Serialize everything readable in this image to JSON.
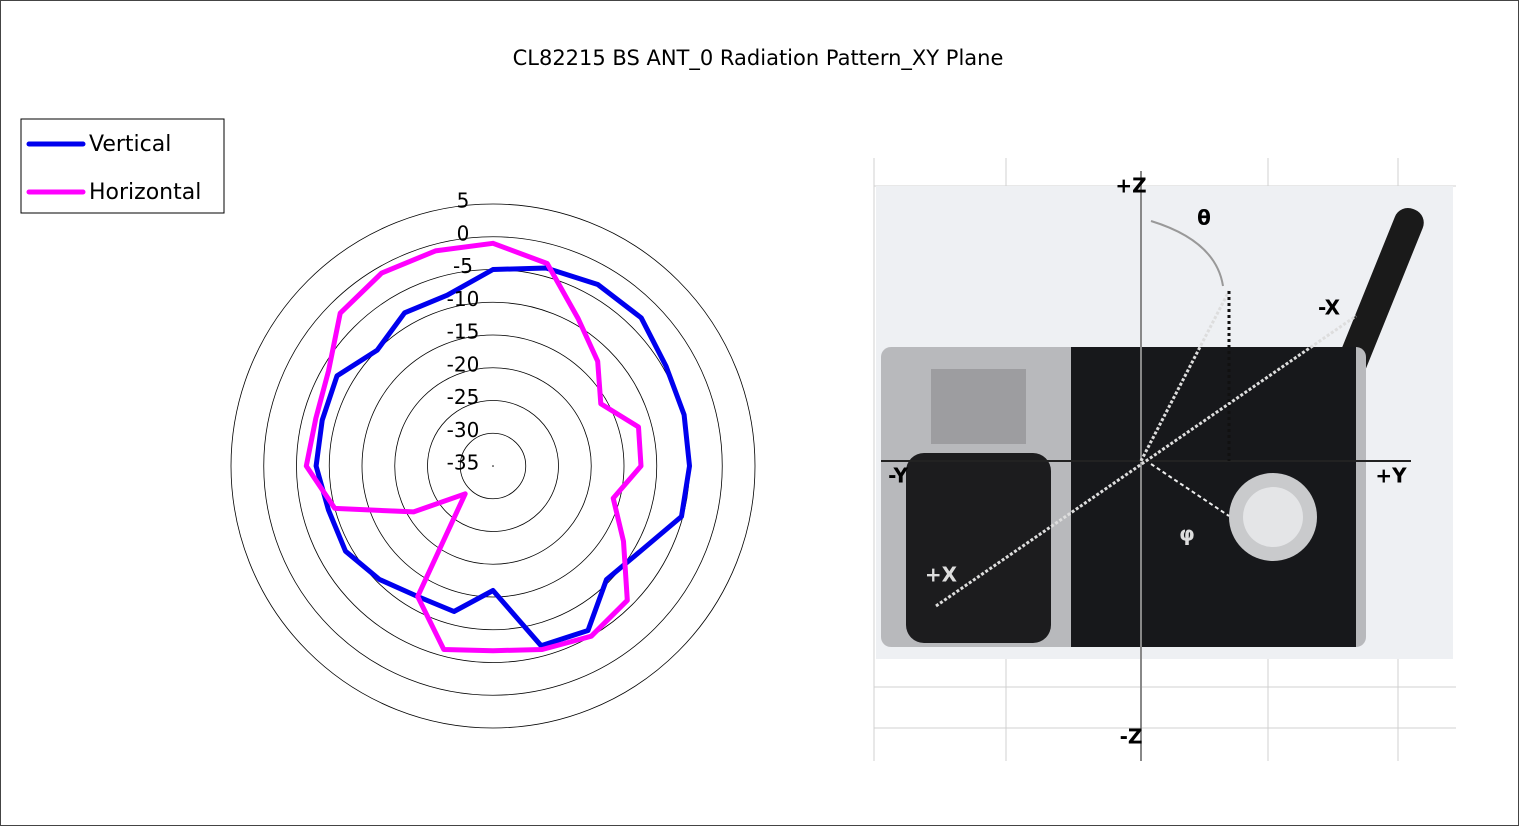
{
  "chart_data": {
    "type": "radar",
    "title": "CL82215 BS ANT_0 Radiation Pattern_XY Plane",
    "rlim": [
      -35,
      5
    ],
    "rticks": [
      5,
      0,
      -5,
      -10,
      -15,
      -20,
      -25,
      -30,
      -35
    ],
    "grid": true,
    "legend": "top-left",
    "series": [
      {
        "name": "Vertical",
        "color": "#0000ee",
        "values": [
          -5,
          -3.7,
          -3,
          -3,
          -4.5,
          -4.8,
          -5,
          -5.2,
          -9,
          -10.5,
          -6,
          -6.6,
          -16,
          -12,
          -12,
          -10.5,
          -9,
          -9,
          -8,
          -8,
          -7.5,
          -10,
          -8,
          -8
        ]
      },
      {
        "name": "Horizontal",
        "color": "#ff00ff",
        "values": [
          -1,
          -3,
          -9,
          -12.4,
          -16,
          -12,
          -12.4,
          -16,
          -12,
          -6,
          -5,
          -6,
          -6.8,
          -6,
          -12,
          -29,
          -21,
          -10,
          -6.5,
          -7,
          -6,
          -2,
          -1,
          -1
        ]
      }
    ]
  },
  "figure": {
    "labels": [
      "+Z",
      "-Z",
      "-Y",
      "+Y",
      "-X",
      "θ",
      "φ",
      "+X"
    ]
  }
}
